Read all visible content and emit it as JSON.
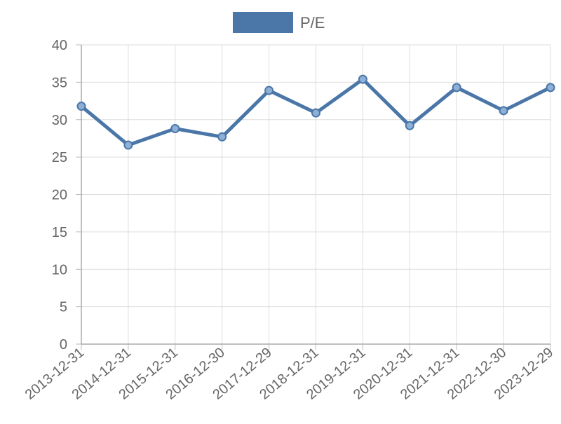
{
  "chart_data": {
    "type": "line",
    "categories": [
      "2013-12-31",
      "2014-12-31",
      "2015-12-31",
      "2016-12-30",
      "2017-12-29",
      "2018-12-31",
      "2019-12-31",
      "2020-12-31",
      "2021-12-31",
      "2022-12-30",
      "2023-12-29"
    ],
    "series": [
      {
        "name": "P/E",
        "values": [
          31.8,
          26.6,
          28.8,
          27.7,
          33.9,
          30.9,
          35.4,
          29.2,
          34.3,
          31.2,
          34.3
        ],
        "color": "#4a76a8"
      }
    ],
    "ylim": [
      0,
      40
    ],
    "yticks": [
      0,
      5,
      10,
      15,
      20,
      25,
      30,
      35,
      40
    ],
    "grid": true,
    "legend_position": "top"
  }
}
